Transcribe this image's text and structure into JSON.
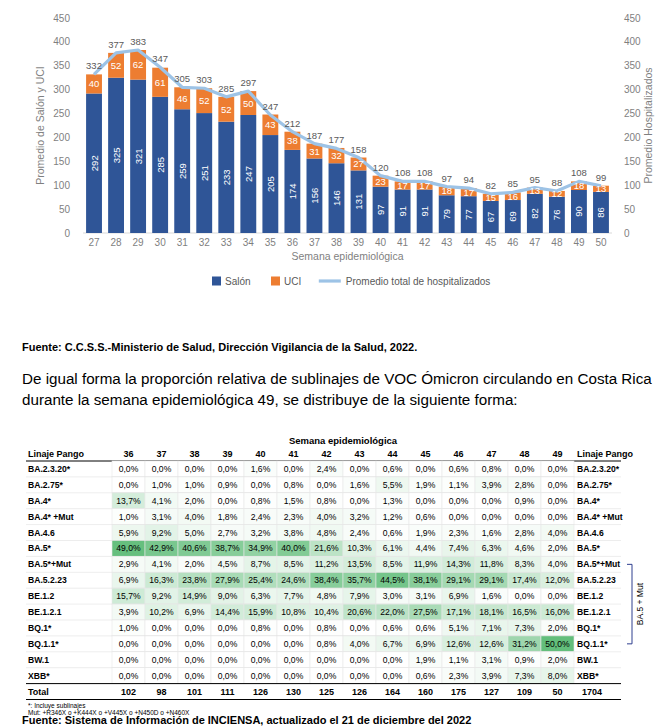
{
  "chart_data": {
    "type": "bar",
    "stacked": true,
    "data_labels": true,
    "grid": false,
    "legend": "bottom",
    "y_label": "Promedio de Salón y UCI",
    "y2_label": "Promedio Hospitalizados",
    "x_label": "Semana epidemiológica",
    "categories": [
      "27",
      "28",
      "29",
      "30",
      "31",
      "32",
      "33",
      "34",
      "35",
      "36",
      "37",
      "38",
      "39",
      "40",
      "41",
      "42",
      "43",
      "44",
      "45",
      "46",
      "47",
      "48",
      "49",
      "50"
    ],
    "ylim": [
      0,
      450
    ],
    "yticks": [
      0,
      50,
      100,
      150,
      200,
      250,
      300,
      350,
      400,
      450
    ],
    "y2lim": [
      0,
      450
    ],
    "y2ticks": [
      0,
      50,
      100,
      150,
      200,
      250,
      300,
      350,
      400,
      450
    ],
    "series": [
      {
        "name": "Salón",
        "type": "bar",
        "color": "#2f5597",
        "values": [
          292,
          325,
          321,
          285,
          259,
          251,
          233,
          247,
          205,
          174,
          156,
          146,
          131,
          97,
          91,
          91,
          79,
          77,
          67,
          69,
          82,
          76,
          90,
          86
        ]
      },
      {
        "name": "UCI",
        "type": "bar",
        "color": "#ed7d31",
        "values": [
          40,
          52,
          62,
          61,
          46,
          52,
          52,
          50,
          43,
          38,
          31,
          32,
          27,
          23,
          17,
          17,
          18,
          17,
          15,
          16,
          13,
          12,
          18,
          13
        ]
      },
      {
        "name": "Promedio total  de hospitalizados",
        "type": "line",
        "axis": "y2",
        "color": "#9dc3e6",
        "values": [
          332,
          377,
          383,
          347,
          305,
          303,
          285,
          297,
          247,
          212,
          187,
          177,
          158,
          120,
          108,
          108,
          97,
          94,
          82,
          85,
          95,
          88,
          108,
          99
        ]
      }
    ]
  },
  "source": "Fuente: C.C.S.S.-Ministerio de Salud, Dirección Vigilancia de la Salud, 2022.",
  "paragraph": "De igual forma la proporción relativa de sublinajes de VOC Ómicron circulando en Costa Rica durante la semana epidemiológica 49, se distribuye de la siguiente forma:",
  "table": {
    "title": "Semana epidemiológica",
    "header": "Linaje Pango",
    "columns": [
      "36",
      "37",
      "38",
      "39",
      "40",
      "41",
      "42",
      "43",
      "44",
      "45",
      "46",
      "47",
      "48",
      "49"
    ],
    "rows": [
      {
        "label": "BA.2.3.20*",
        "cells": [
          "0,0%",
          "0,0%",
          "0,0%",
          "0,0%",
          "1,6%",
          "0,0%",
          "2,4%",
          "0,0%",
          "0,6%",
          "0,0%",
          "0,6%",
          "0,8%",
          "0,0%",
          "0,0%"
        ]
      },
      {
        "label": "BA.2.75*",
        "cells": [
          "0,0%",
          "1,0%",
          "1,0%",
          "0,9%",
          "0,0%",
          "0,8%",
          "0,0%",
          "1,6%",
          "5,5%",
          "1,9%",
          "1,1%",
          "3,9%",
          "2,8%",
          "0,0%"
        ]
      },
      {
        "label": "BA.4*",
        "cells": [
          "13,7%",
          "4,1%",
          "2,0%",
          "0,0%",
          "0,8%",
          "1,5%",
          "0,8%",
          "0,0%",
          "1,3%",
          "0,0%",
          "0,0%",
          "0,0%",
          "0,9%",
          "0,0%"
        ]
      },
      {
        "label": "BA.4* +Mut",
        "cells": [
          "1,0%",
          "3,1%",
          "4,0%",
          "1,8%",
          "2,4%",
          "2,3%",
          "4,0%",
          "3,2%",
          "1,2%",
          "0,6%",
          "0,0%",
          "0,0%",
          "0,0%",
          "0,0%"
        ]
      },
      {
        "label": "BA.4.6",
        "cells": [
          "5,9%",
          "9,2%",
          "5,0%",
          "2,7%",
          "3,2%",
          "3,8%",
          "4,8%",
          "2,4%",
          "0,6%",
          "1,9%",
          "2,3%",
          "1,6%",
          "2,8%",
          "4,0%"
        ]
      },
      {
        "label": "BA.5*",
        "cells": [
          "49,0%",
          "42,9%",
          "40,6%",
          "38,7%",
          "34,9%",
          "40,0%",
          "21,6%",
          "10,3%",
          "6,1%",
          "4,4%",
          "7,4%",
          "6,3%",
          "4,6%",
          "2,0%"
        ]
      },
      {
        "label": "BA.5*+Mut",
        "cells": [
          "2,9%",
          "4,1%",
          "2,0%",
          "4,5%",
          "8,7%",
          "8,5%",
          "11,2%",
          "13,5%",
          "8,5%",
          "11,9%",
          "14,3%",
          "11,8%",
          "8,3%",
          "4,0%"
        ]
      },
      {
        "label": "BA.5.2.23",
        "cells": [
          "6,9%",
          "16,3%",
          "23,8%",
          "27,9%",
          "25,4%",
          "24,6%",
          "38,4%",
          "35,7%",
          "44,5%",
          "38,1%",
          "29,1%",
          "29,1%",
          "17,4%",
          "12,0%"
        ]
      },
      {
        "label": "BE.1.2",
        "cells": [
          "15,7%",
          "9,2%",
          "14,9%",
          "9,0%",
          "6,3%",
          "7,7%",
          "4,8%",
          "7,9%",
          "3,0%",
          "3,1%",
          "6,9%",
          "1,6%",
          "0,0%",
          "0,0%"
        ]
      },
      {
        "label": "BE.1.2.1",
        "cells": [
          "3,9%",
          "10,2%",
          "6,9%",
          "14,4%",
          "15,9%",
          "10,8%",
          "10,4%",
          "20,6%",
          "22,0%",
          "27,5%",
          "17,1%",
          "18,1%",
          "16,5%",
          "16,0%"
        ]
      },
      {
        "label": "BQ.1*",
        "cells": [
          "1,0%",
          "0,0%",
          "0,0%",
          "0,0%",
          "0,8%",
          "0,0%",
          "0,8%",
          "0,0%",
          "0,6%",
          "0,6%",
          "5,1%",
          "7,1%",
          "7,3%",
          "2,0%"
        ]
      },
      {
        "label": "BQ.1.1*",
        "cells": [
          "0,0%",
          "0,0%",
          "0,0%",
          "0,0%",
          "0,0%",
          "0,0%",
          "0,8%",
          "4,0%",
          "6,7%",
          "6,9%",
          "12,6%",
          "12,6%",
          "31,2%",
          "50,0%"
        ]
      },
      {
        "label": "BW.1",
        "cells": [
          "0,0%",
          "0,0%",
          "0,0%",
          "0,0%",
          "0,0%",
          "0,0%",
          "0,0%",
          "0,0%",
          "0,0%",
          "1,9%",
          "1,1%",
          "3,1%",
          "0,9%",
          "2,0%"
        ]
      },
      {
        "label": "XBB*",
        "cells": [
          "0,0%",
          "0,0%",
          "0,0%",
          "0,0%",
          "0,0%",
          "0,0%",
          "0,0%",
          "0,0%",
          "0,0%",
          "0,6%",
          "2,3%",
          "3,9%",
          "7,3%",
          "8,0%"
        ]
      }
    ],
    "total": {
      "label": "Total",
      "cells": [
        "102",
        "98",
        "101",
        "111",
        "126",
        "130",
        "125",
        "126",
        "164",
        "160",
        "175",
        "127",
        "109",
        "50"
      ],
      "overall": "1704"
    },
    "group_label": "BA.5 + Mut"
  },
  "footnotes": [
    "*: Incluye sublinajes",
    "Mut: +R346X o +K444X o +V445X o +N450D o +N460X"
  ],
  "source2": "Fuente: Sistema de Información de INCIENSA, actualizado el 21 de diciembre del 2022"
}
